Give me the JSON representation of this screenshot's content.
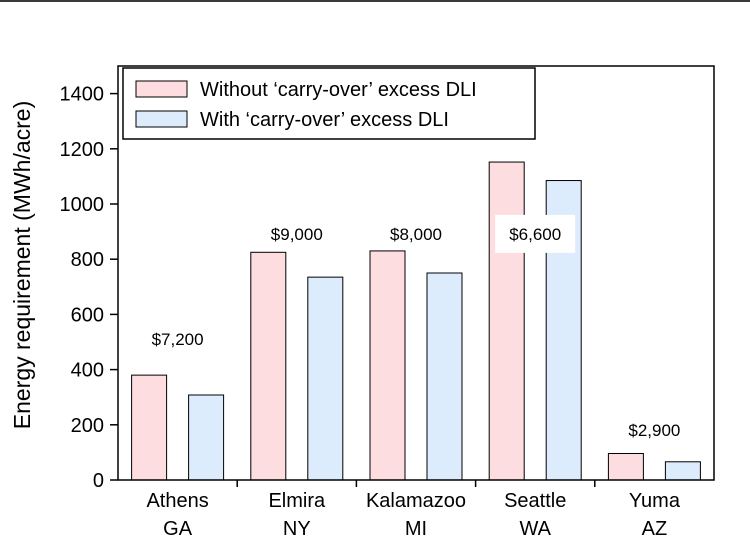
{
  "chart_data": {
    "type": "bar",
    "title": "",
    "xlabel": "",
    "ylabel": "Energy requirement (MWh/acre)",
    "ylim": [
      0,
      1500
    ],
    "yticks": [
      0,
      200,
      400,
      600,
      800,
      1000,
      1200,
      1400
    ],
    "categories": [
      {
        "line1": "Athens",
        "line2": "GA"
      },
      {
        "line1": "Elmira",
        "line2": "NY"
      },
      {
        "line1": "Kalamazoo",
        "line2": "MI"
      },
      {
        "line1": "Seattle",
        "line2": "WA"
      },
      {
        "line1": "Yuma",
        "line2": "AZ"
      }
    ],
    "series": [
      {
        "name": "Without ‘carry-over’ excess DLI",
        "color": "#fddde0",
        "values": [
          380,
          825,
          830,
          1152,
          96
        ]
      },
      {
        "name": "With ‘carry-over’ excess DLI",
        "color": "#dcecfc",
        "values": [
          308,
          735,
          750,
          1085,
          66
        ]
      }
    ],
    "annotations": [
      {
        "text": "$7,200",
        "category": 0,
        "y": 490
      },
      {
        "text": "$9,000",
        "category": 1,
        "y": 870
      },
      {
        "text": "$8,000",
        "category": 2,
        "y": 870
      },
      {
        "text": "$6,600",
        "category": 3,
        "y": 870
      },
      {
        "text": "$2,900",
        "category": 4,
        "y": 160
      }
    ],
    "legend_position": "top-left",
    "grid": false
  }
}
